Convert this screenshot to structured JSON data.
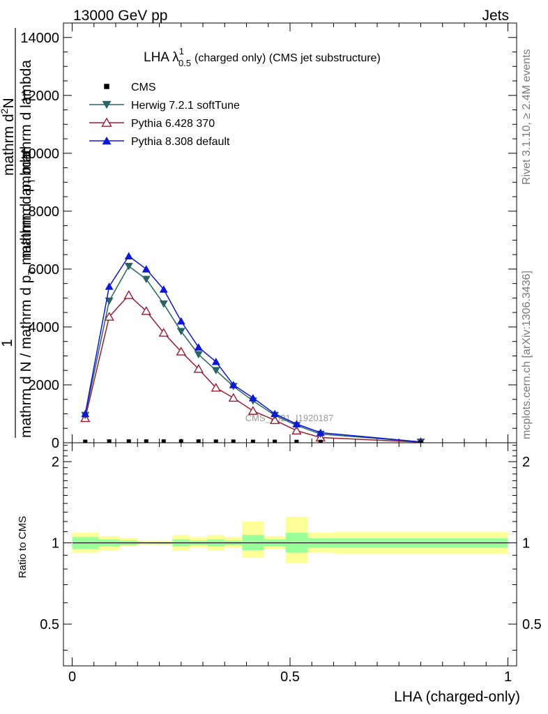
{
  "header": {
    "left": "13000 GeV pp",
    "right": "Jets"
  },
  "side_text": {
    "rivet": "Rivet 3.1.10, ≥ 2.4M events",
    "mcplots": "mcplots.cern.ch [arXiv:1306.3436]"
  },
  "watermark": "CMS_2021_I1920187",
  "main_ylabel": {
    "line1": "1",
    "line2": "mathrm d N / mathrm d p",
    "line2_sub": "T",
    "line2_tail": " mathrm d lambda",
    "line3": "mathrm d",
    "line3_sup": "2",
    "line3_tail": "N",
    "line4": "mathrm d p",
    "line4_sub": "T",
    "line4_tail": " mathrm d lambda"
  },
  "chart_data": [
    {
      "type": "line",
      "title": "LHA λ",
      "title_sup": "1",
      "title_sub": "0.5",
      "title_tail": "(charged only) (CMS jet substructure)",
      "xlabel": "",
      "ylabel": "",
      "xlim": [
        -0.02,
        1.02
      ],
      "ylim": [
        0,
        14500
      ],
      "yticks": [
        0,
        2000,
        4000,
        6000,
        8000,
        10000,
        12000,
        14000
      ],
      "ytick_labels": [
        "0",
        "2000",
        "4000",
        "6000",
        "8000",
        "10000",
        "12000",
        "14000"
      ],
      "legend_position": "top-left",
      "x": [
        0.03,
        0.085,
        0.13,
        0.17,
        0.21,
        0.25,
        0.29,
        0.33,
        0.37,
        0.415,
        0.465,
        0.515,
        0.57,
        0.8
      ],
      "series": [
        {
          "name": "CMS",
          "marker": "square",
          "color": "#000000",
          "values": [
            35,
            45,
            45,
            45,
            45,
            45,
            45,
            40,
            40,
            35,
            35,
            30,
            30,
            5
          ]
        },
        {
          "name": "Herwig 7.2.1 softTune",
          "marker": "triangle-down-filled",
          "color": "#2a6363",
          "values": [
            950,
            4900,
            6100,
            5650,
            4800,
            3850,
            3050,
            2500,
            1950,
            1450,
            950,
            600,
            300,
            30
          ]
        },
        {
          "name": "Pythia 6.428 370",
          "marker": "triangle-up-open",
          "color": "#9b1b30",
          "values": [
            850,
            4350,
            5100,
            4550,
            3800,
            3150,
            2550,
            1900,
            1550,
            1100,
            780,
            420,
            180,
            20
          ]
        },
        {
          "name": "Pythia 8.308 default",
          "marker": "triangle-up-filled",
          "color": "#0d17d6",
          "values": [
            1000,
            5400,
            6450,
            6000,
            5300,
            4200,
            3300,
            2800,
            2000,
            1550,
            1000,
            650,
            350,
            30
          ]
        }
      ]
    },
    {
      "type": "area",
      "title": "",
      "xlabel": "LHA (charged-only)",
      "ylabel": "Ratio to CMS",
      "xlim": [
        -0.02,
        1.02
      ],
      "ylim": [
        0.35,
        2.35
      ],
      "log_y": true,
      "yticks": [
        0.5,
        1,
        2
      ],
      "ytick_labels": [
        "0.5",
        "1",
        "2"
      ],
      "xticks": [
        0,
        0.5,
        1
      ],
      "xtick_labels": [
        "0",
        "0.5",
        "1"
      ],
      "bins": [
        {
          "x0": 0.0,
          "x1": 0.06,
          "inner": [
            0.95,
            1.05
          ],
          "outer": [
            0.92,
            1.09
          ]
        },
        {
          "x0": 0.06,
          "x1": 0.11,
          "inner": [
            0.97,
            1.03
          ],
          "outer": [
            0.94,
            1.06
          ]
        },
        {
          "x0": 0.11,
          "x1": 0.15,
          "inner": [
            0.98,
            1.02
          ],
          "outer": [
            0.97,
            1.04
          ]
        },
        {
          "x0": 0.15,
          "x1": 0.19,
          "inner": [
            0.99,
            1.01
          ],
          "outer": [
            0.985,
            1.02
          ]
        },
        {
          "x0": 0.19,
          "x1": 0.23,
          "inner": [
            0.99,
            1.01
          ],
          "outer": [
            0.98,
            1.02
          ]
        },
        {
          "x0": 0.23,
          "x1": 0.27,
          "inner": [
            0.97,
            1.03
          ],
          "outer": [
            0.94,
            1.07
          ]
        },
        {
          "x0": 0.27,
          "x1": 0.31,
          "inner": [
            0.98,
            1.02
          ],
          "outer": [
            0.96,
            1.05
          ]
        },
        {
          "x0": 0.31,
          "x1": 0.35,
          "inner": [
            0.97,
            1.03
          ],
          "outer": [
            0.94,
            1.07
          ]
        },
        {
          "x0": 0.35,
          "x1": 0.39,
          "inner": [
            0.98,
            1.02
          ],
          "outer": [
            0.96,
            1.05
          ]
        },
        {
          "x0": 0.39,
          "x1": 0.44,
          "inner": [
            0.94,
            1.07
          ],
          "outer": [
            0.88,
            1.2
          ]
        },
        {
          "x0": 0.44,
          "x1": 0.49,
          "inner": [
            0.97,
            1.03
          ],
          "outer": [
            0.95,
            1.06
          ]
        },
        {
          "x0": 0.49,
          "x1": 0.54,
          "inner": [
            0.92,
            1.09
          ],
          "outer": [
            0.84,
            1.25
          ]
        },
        {
          "x0": 0.54,
          "x1": 0.6,
          "inner": [
            0.96,
            1.04
          ],
          "outer": [
            0.92,
            1.09
          ]
        },
        {
          "x0": 0.6,
          "x1": 1.0,
          "inner": [
            0.96,
            1.04
          ],
          "outer": [
            0.91,
            1.1
          ]
        }
      ]
    }
  ]
}
